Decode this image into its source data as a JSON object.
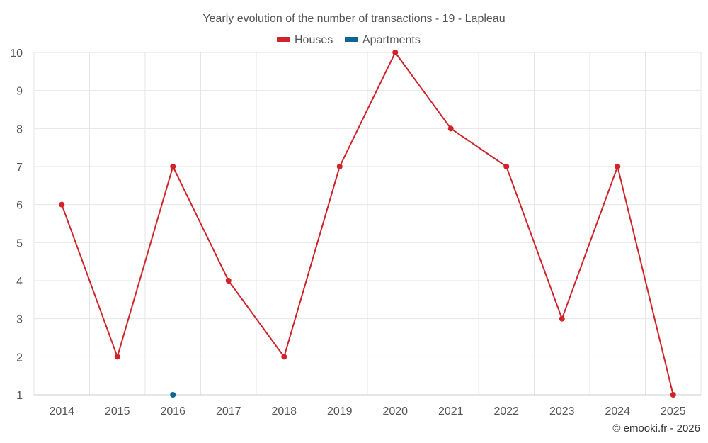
{
  "chart_data": {
    "type": "line",
    "title": "Yearly evolution of the number of transactions - 19 - Lapleau",
    "categories": [
      "2014",
      "2015",
      "2016",
      "2017",
      "2018",
      "2019",
      "2020",
      "2021",
      "2022",
      "2023",
      "2024",
      "2025"
    ],
    "series": [
      {
        "name": "Houses",
        "color": "#d0232a",
        "values": [
          6,
          2,
          7,
          4,
          2,
          7,
          10,
          8,
          7,
          3,
          7,
          1
        ]
      },
      {
        "name": "Apartments",
        "color": "#0f6496",
        "values": [
          null,
          null,
          1,
          null,
          null,
          null,
          null,
          null,
          null,
          null,
          null,
          null
        ]
      }
    ],
    "ylim": [
      1,
      10
    ],
    "yticks": [
      1,
      2,
      3,
      4,
      5,
      6,
      7,
      8,
      9,
      10
    ],
    "xlabel": "",
    "ylabel": "",
    "grid": true,
    "legend": "top-center"
  },
  "credit": "© emooki.fr - 2026"
}
